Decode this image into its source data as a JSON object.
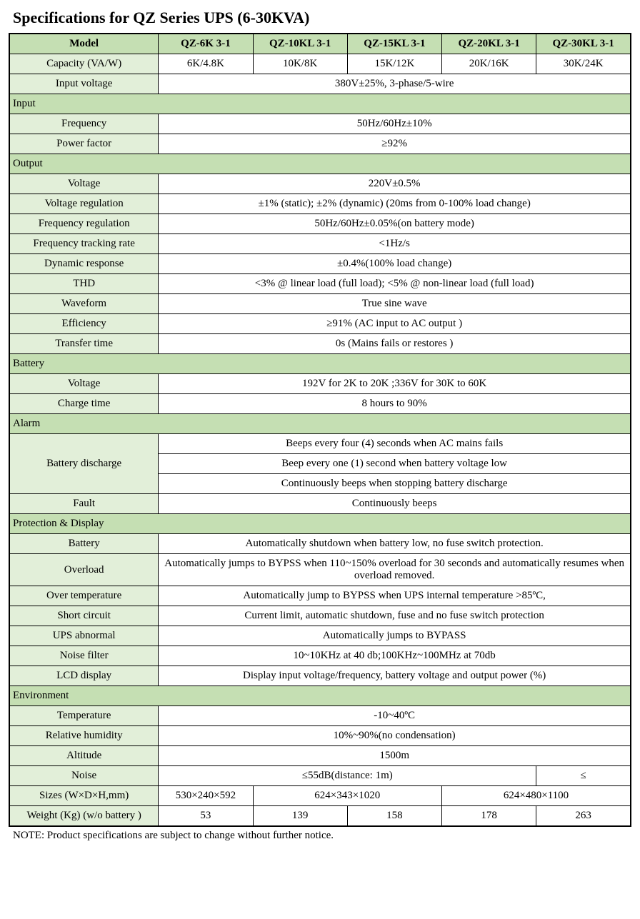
{
  "title": "Specifications for QZ Series UPS (6-30KVA)",
  "colors": {
    "header_bg": "#c5dfb3",
    "label_bg": "#e2efd9",
    "border": "#000000",
    "page_bg": "#ffffff"
  },
  "columns": [
    "Model",
    "QZ-6K  3-1",
    "QZ-10KL  3-1",
    "QZ-15KL  3-1",
    "QZ-20KL  3-1",
    "QZ-30KL  3-1"
  ],
  "capacity": {
    "label": "Capacity (VA/W)",
    "values": [
      "6K/4.8K",
      "10K/8K",
      "15K/12K",
      "20K/16K",
      "30K/24K"
    ]
  },
  "input_voltage": {
    "label": "Input voltage",
    "value": "380V±25%, 3-phase/5-wire"
  },
  "sections": {
    "input": "Input",
    "output": "Output",
    "battery": "Battery",
    "alarm": "Alarm",
    "protection": "Protection & Display",
    "environment": "Environment"
  },
  "input": {
    "frequency": {
      "label": "Frequency",
      "value": "50Hz/60Hz±10%"
    },
    "power_factor": {
      "label": "Power factor",
      "value": "≥92%"
    }
  },
  "output": {
    "voltage": {
      "label": "Voltage",
      "value": "220V±0.5%"
    },
    "voltage_reg": {
      "label": "Voltage regulation",
      "value": "±1% (static); ±2% (dynamic) (20ms from 0-100% load change)"
    },
    "freq_reg": {
      "label": "Frequency regulation",
      "value": "50Hz/60Hz±0.05%(on battery mode)"
    },
    "freq_track": {
      "label": "Frequency tracking rate",
      "value": "<1Hz/s"
    },
    "dyn_resp": {
      "label": "Dynamic response",
      "value": "±0.4%(100% load change)"
    },
    "thd": {
      "label": "THD",
      "value": "<3% @ linear load (full load); <5% @ non-linear load (full load)"
    },
    "waveform": {
      "label": "Waveform",
      "value": "True sine wave"
    },
    "efficiency": {
      "label": "Efficiency",
      "value": "≥91% (AC input to AC output )"
    },
    "transfer": {
      "label": "Transfer time",
      "value": "0s (Mains fails or restores )"
    }
  },
  "battery": {
    "voltage": {
      "label": "Voltage",
      "value": "192V for 2K to 20K ;336V for 30K to 60K"
    },
    "charge": {
      "label": "Charge time",
      "value": "8 hours to 90%"
    }
  },
  "alarm": {
    "discharge_label": "Battery discharge",
    "discharge1": "Beeps every four (4) seconds when AC mains fails",
    "discharge2": "Beep every one (1) second when battery voltage low",
    "discharge3": "Continuously beeps when stopping battery discharge",
    "fault": {
      "label": "Fault",
      "value": "Continuously beeps"
    }
  },
  "protection": {
    "battery": {
      "label": "Battery",
      "value": "Automatically shutdown when battery low, no fuse switch protection."
    },
    "overload": {
      "label": "Overload",
      "value": "Automatically jumps to BYPSS when 110~150% overload for 30 seconds and automatically resumes when overload removed."
    },
    "overtemp": {
      "label": "Over temperature",
      "value": "Automatically jump to BYPSS when UPS internal temperature >85ºC,"
    },
    "short": {
      "label": "Short circuit",
      "value": "Current limit, automatic shutdown, fuse and no fuse switch protection"
    },
    "abnormal": {
      "label": "UPS abnormal",
      "value": "Automatically jumps to BYPASS"
    },
    "noise_filter": {
      "label": "Noise filter",
      "value": "10~10KHz at 40 db;100KHz~100MHz at 70db"
    },
    "lcd": {
      "label": "LCD display",
      "value": "Display input voltage/frequency, battery voltage and output power (%)"
    }
  },
  "environment": {
    "temp": {
      "label": "Temperature",
      "value": "-10~40ºC"
    },
    "humidity": {
      "label": "Relative humidity",
      "value": "10%~90%(no condensation)"
    },
    "altitude": {
      "label": "Altitude",
      "value": "1500m"
    },
    "noise": {
      "label": "Noise",
      "value1": "≤55dB(distance: 1m)",
      "value2": "≤"
    },
    "sizes": {
      "label": "Sizes (W×D×H,mm)",
      "v1": "530×240×592",
      "v2": "624×343×1020",
      "v3": "624×480×1100"
    },
    "weight": {
      "label": "Weight (Kg) (w/o battery )",
      "values": [
        "53",
        "139",
        "158",
        "178",
        "263"
      ]
    }
  },
  "note": "NOTE: Product specifications are subject to change without further notice."
}
